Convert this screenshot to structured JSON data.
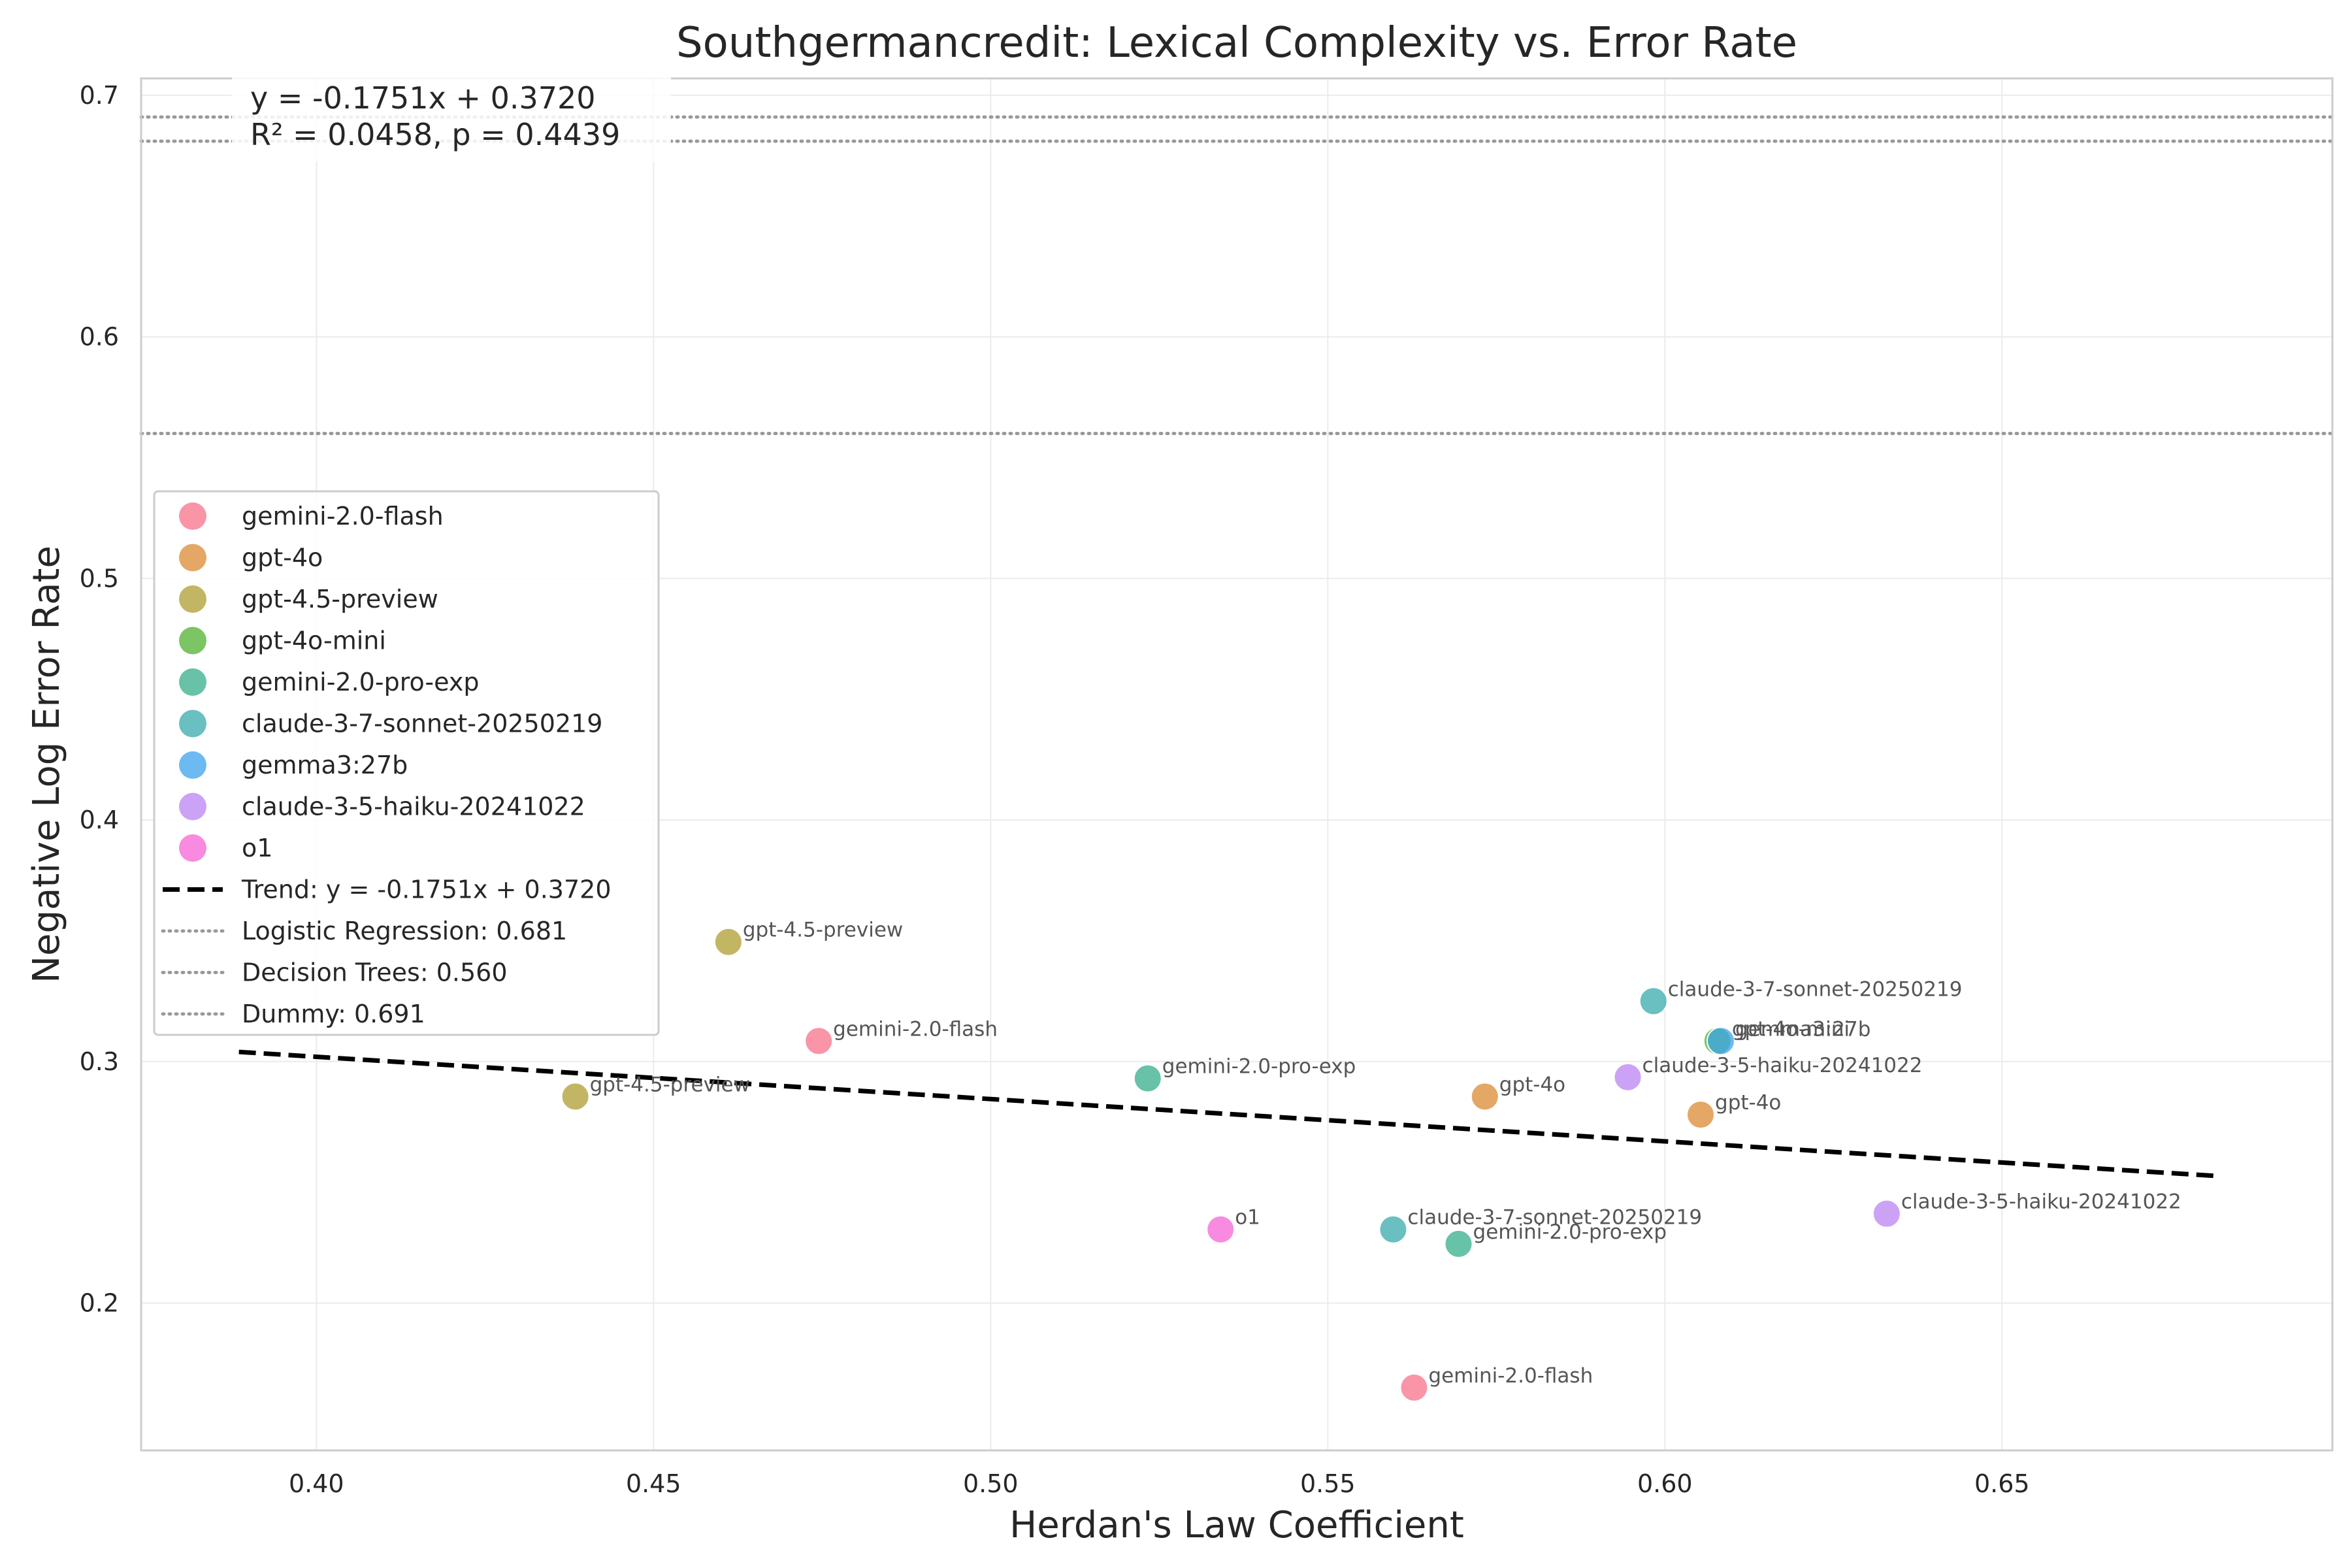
{
  "chart_data": {
    "type": "scatter",
    "title": "Southgermancredit: Lexical Complexity vs. Error Rate",
    "xlabel": "Herdan's Law Coefficient",
    "ylabel": "Negative Log Error Rate",
    "xlim": [
      0.374,
      0.699
    ],
    "ylim": [
      0.139,
      0.707
    ],
    "xticks": [
      "0.40",
      "0.45",
      "0.50",
      "0.55",
      "0.60",
      "0.65"
    ],
    "yticks": [
      "0.2",
      "0.3",
      "0.4",
      "0.5",
      "0.6",
      "0.7"
    ],
    "grid": true,
    "legend_position": "center-left",
    "series": [
      {
        "name": "gemini-2.0-flash",
        "color": "#f77189",
        "points": [
          [
            0.4745,
            0.3085
          ],
          [
            0.5628,
            0.165
          ]
        ]
      },
      {
        "name": "gpt-4o",
        "color": "#dc8932",
        "points": [
          [
            0.5733,
            0.2855
          ],
          [
            0.6053,
            0.278
          ]
        ]
      },
      {
        "name": "gpt-4.5-preview",
        "color": "#ae9d31",
        "points": [
          [
            0.4611,
            0.3495
          ],
          [
            0.4384,
            0.2855
          ]
        ]
      },
      {
        "name": "gpt-4o-mini",
        "color": "#50b131",
        "points": [
          [
            0.6078,
            0.3085
          ]
        ]
      },
      {
        "name": "gemini-2.0-pro-exp",
        "color": "#36ad8a",
        "points": [
          [
            0.5233,
            0.293
          ],
          [
            0.5694,
            0.2245
          ]
        ]
      },
      {
        "name": "claude-3-7-sonnet-20250219",
        "color": "#38aaac",
        "points": [
          [
            0.5983,
            0.325
          ],
          [
            0.5597,
            0.2305
          ]
        ]
      },
      {
        "name": "gemma3:27b",
        "color": "#3ba3ec",
        "points": [
          [
            0.6083,
            0.3085
          ]
        ]
      },
      {
        "name": "claude-3-5-haiku-20241022",
        "color": "#bb83f4",
        "points": [
          [
            0.5945,
            0.2935
          ],
          [
            0.6329,
            0.237
          ]
        ]
      },
      {
        "name": "o1",
        "color": "#f564d4",
        "points": [
          [
            0.5341,
            0.2305
          ]
        ]
      }
    ],
    "point_labels": [
      {
        "text": "gpt-4.5-preview",
        "x": 0.4611,
        "y": 0.3495
      },
      {
        "text": "gemini-2.0-flash",
        "x": 0.4745,
        "y": 0.3085
      },
      {
        "text": "gpt-4.5-preview",
        "x": 0.4384,
        "y": 0.2855
      },
      {
        "text": "gemini-2.0-pro-exp",
        "x": 0.5233,
        "y": 0.293
      },
      {
        "text": "o1",
        "x": 0.5341,
        "y": 0.2305
      },
      {
        "text": "claude-3-7-sonnet-20250219",
        "x": 0.5597,
        "y": 0.2305
      },
      {
        "text": "gemini-2.0-pro-exp",
        "x": 0.5694,
        "y": 0.2245
      },
      {
        "text": "gemini-2.0-flash",
        "x": 0.5628,
        "y": 0.165
      },
      {
        "text": "gpt-4o",
        "x": 0.5733,
        "y": 0.2855
      },
      {
        "text": "claude-3-5-haiku-20241022",
        "x": 0.5945,
        "y": 0.2935
      },
      {
        "text": "claude-3-7-sonnet-20250219",
        "x": 0.5983,
        "y": 0.325
      },
      {
        "text": "gpt-4o-mini",
        "x": 0.6078,
        "y": 0.3085
      },
      {
        "text": "gemma3:27b",
        "x": 0.6083,
        "y": 0.3085
      },
      {
        "text": "gpt-4o",
        "x": 0.6053,
        "y": 0.278
      },
      {
        "text": "claude-3-5-haiku-20241022",
        "x": 0.6329,
        "y": 0.237
      }
    ],
    "trend": {
      "label": "Trend: y = -0.1751x + 0.3720",
      "slope": -0.1751,
      "intercept": 0.372,
      "x_range": [
        0.3885,
        0.6825
      ],
      "color": "#000000"
    },
    "reference_lines": [
      {
        "label": "Logistic Regression: 0.681",
        "y": 0.681,
        "color": "#999999"
      },
      {
        "label": "Decision Trees: 0.560",
        "y": 0.56,
        "color": "#999999"
      },
      {
        "label": "Dummy: 0.691",
        "y": 0.691,
        "color": "#999999"
      }
    ],
    "annotation": [
      "y = -0.1751x + 0.3720",
      "R² = 0.0458, p = 0.4439"
    ]
  }
}
